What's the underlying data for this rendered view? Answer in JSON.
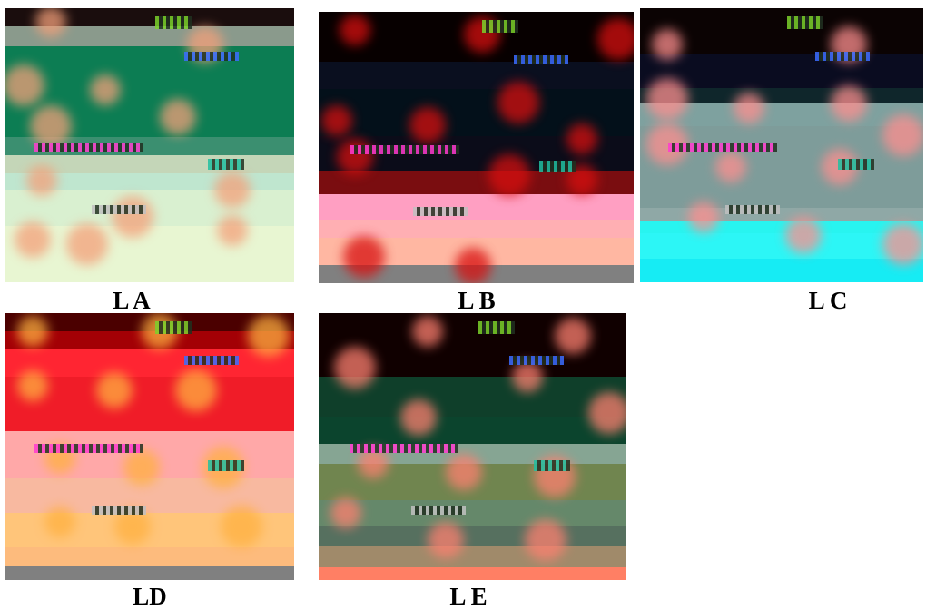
{
  "figure": {
    "panels": [
      {
        "id": "a",
        "label": "L A",
        "band_colors": [
          "#1a0d0d",
          "#8a9a8c",
          "#0c7d53",
          "#0c7d53",
          "#3b8f70",
          "#c4d6b8",
          "#bfe6cf",
          "#d9f0d0",
          "#e8f6d2"
        ],
        "spot_color": "#f4a07a"
      },
      {
        "id": "b",
        "label": "L B",
        "band_colors": [
          "#070000",
          "#0a0f1f",
          "#03101a",
          "#0b0c19",
          "#7a0d10",
          "#ff9fc2",
          "#ffafb3",
          "#ffb7a2",
          "#808080"
        ],
        "spot_color": "#d80f0f"
      },
      {
        "id": "c",
        "label": "L C",
        "band_colors": [
          "#0b0303",
          "#0a0c20",
          "#0f262b",
          "#7ea19f",
          "#7e9c9a",
          "#8fa8a6",
          "#28f4f0",
          "#2cf6f6",
          "#16ecf4"
        ],
        "spot_color": "#ff8f8f"
      },
      {
        "id": "d",
        "label": "LD",
        "band_colors": [
          "#4b0000",
          "#a30005",
          "#ff2532",
          "#f01c28",
          "#ffa8a8",
          "#f8b9a0",
          "#ffc57a",
          "#fdbb7d",
          "#808080"
        ],
        "spot_color": "#ffb040"
      },
      {
        "id": "e",
        "label": "L E",
        "band_colors": [
          "#100000",
          "#0f3f2a",
          "#0b442d",
          "#86a593",
          "#70854f",
          "#65886a",
          "#56705f",
          "#a08a6a",
          "#ff7f64"
        ],
        "spot_color": "#ff8070"
      }
    ]
  }
}
